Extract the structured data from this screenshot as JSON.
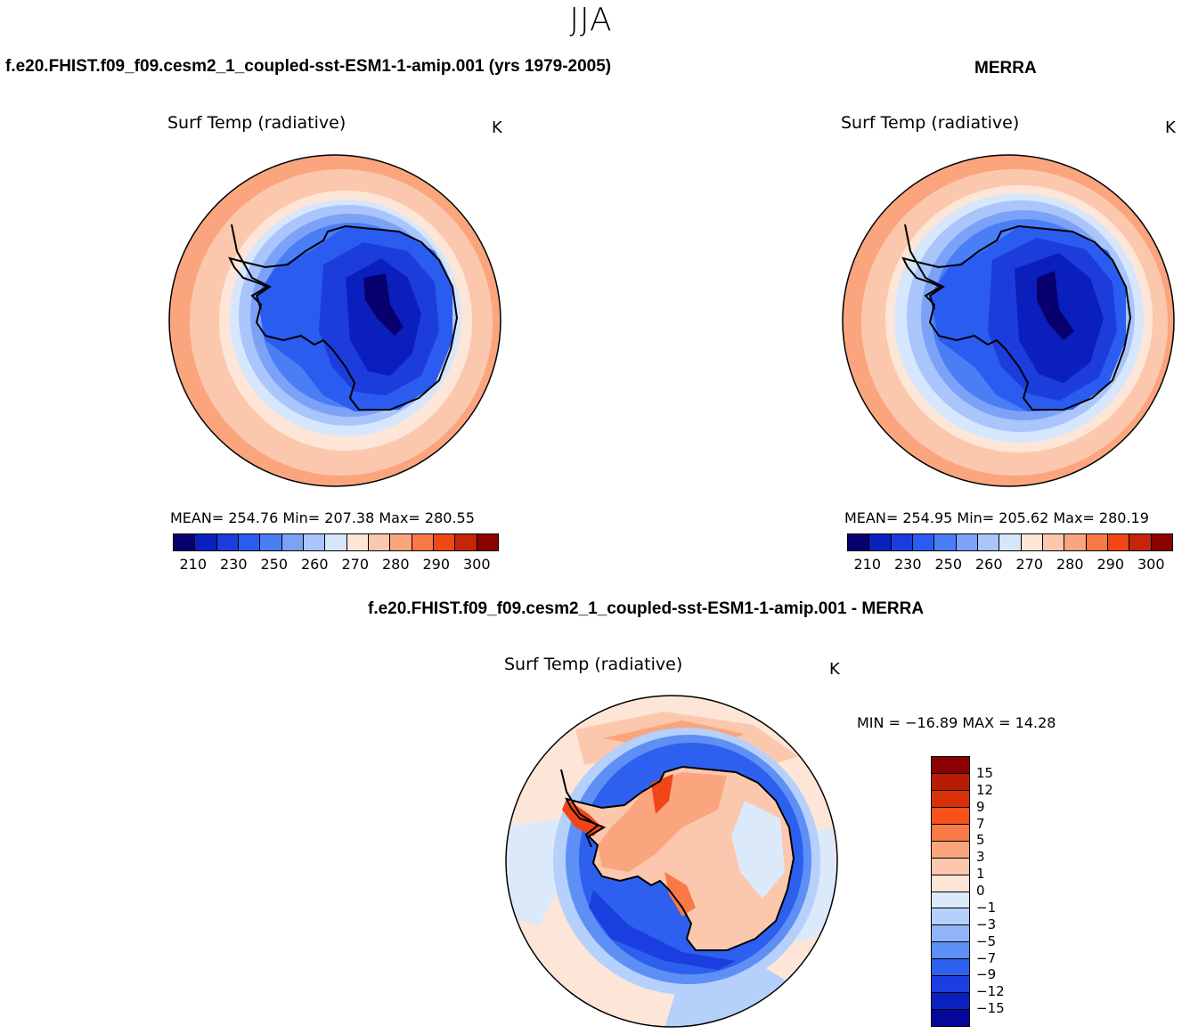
{
  "title": "JJA",
  "panels": {
    "model": {
      "case_title": "f.e20.FHIST.f09_f09.cesm2_1_coupled-sst-ESM1-1-amip.001 (yrs 1979-2005)",
      "var_title": "Surf Temp (radiative)",
      "units": "K",
      "stats": "MEAN= 254.76   Min= 207.38   Max= 280.55"
    },
    "obs": {
      "case_title": "MERRA",
      "var_title": "Surf Temp (radiative)",
      "units": "K",
      "stats": "MEAN= 254.95   Min= 205.62   Max= 280.19"
    },
    "diff": {
      "case_title": "f.e20.FHIST.f09_f09.cesm2_1_coupled-sst-ESM1-1-amip.001 - MERRA",
      "var_title": "Surf Temp (radiative)",
      "units": "K",
      "stats": "MIN = −16.89 MAX =   14.28"
    }
  },
  "colorbar_abs": {
    "colors": [
      "#08006e",
      "#0b1fbd",
      "#1c3ddb",
      "#2b5cf0",
      "#4a7ef5",
      "#7ca2f8",
      "#a9c5fb",
      "#d6e6fc",
      "#fde6d8",
      "#fcc8ad",
      "#fba57e",
      "#f97a47",
      "#ef4718",
      "#c52508",
      "#8b0000"
    ],
    "ticks": [
      "210",
      "230",
      "250",
      "260",
      "270",
      "280",
      "290",
      "300"
    ]
  },
  "colorbar_diff": {
    "colors": [
      "#8b0000",
      "#b91c05",
      "#d9300a",
      "#f7501a",
      "#f97a47",
      "#fba57e",
      "#fcc8ad",
      "#fde6d8",
      "#dce9fb",
      "#b5d0fb",
      "#8fb4f8",
      "#5e8ff5",
      "#2d60ef",
      "#1a3ee0",
      "#0c20bf",
      "#05079a"
    ],
    "labels": [
      "15",
      "12",
      "9",
      "7",
      "5",
      "3",
      "1",
      "0",
      "−1",
      "−3",
      "−5",
      "−7",
      "−9",
      "−12",
      "−15"
    ]
  },
  "chart_data": [
    {
      "type": "heatmap",
      "title": "Surf Temp (radiative)",
      "units": "K",
      "projection": "south polar stereographic",
      "mean": 254.76,
      "min": 207.38,
      "max": 280.55,
      "levels": [
        210,
        220,
        230,
        240,
        250,
        255,
        260,
        265,
        270,
        275,
        280,
        285,
        290,
        300
      ]
    },
    {
      "type": "heatmap",
      "title": "Surf Temp (radiative)",
      "units": "K",
      "projection": "south polar stereographic",
      "mean": 254.95,
      "min": 205.62,
      "max": 280.19,
      "levels": [
        210,
        220,
        230,
        240,
        250,
        255,
        260,
        265,
        270,
        275,
        280,
        285,
        290,
        300
      ]
    },
    {
      "type": "heatmap",
      "title": "Surf Temp (radiative)",
      "units": "K",
      "projection": "south polar stereographic",
      "min": -16.89,
      "max": 14.28,
      "levels": [
        -15,
        -12,
        -9,
        -7,
        -5,
        -3,
        -1,
        0,
        1,
        3,
        5,
        7,
        9,
        12,
        15
      ]
    }
  ]
}
